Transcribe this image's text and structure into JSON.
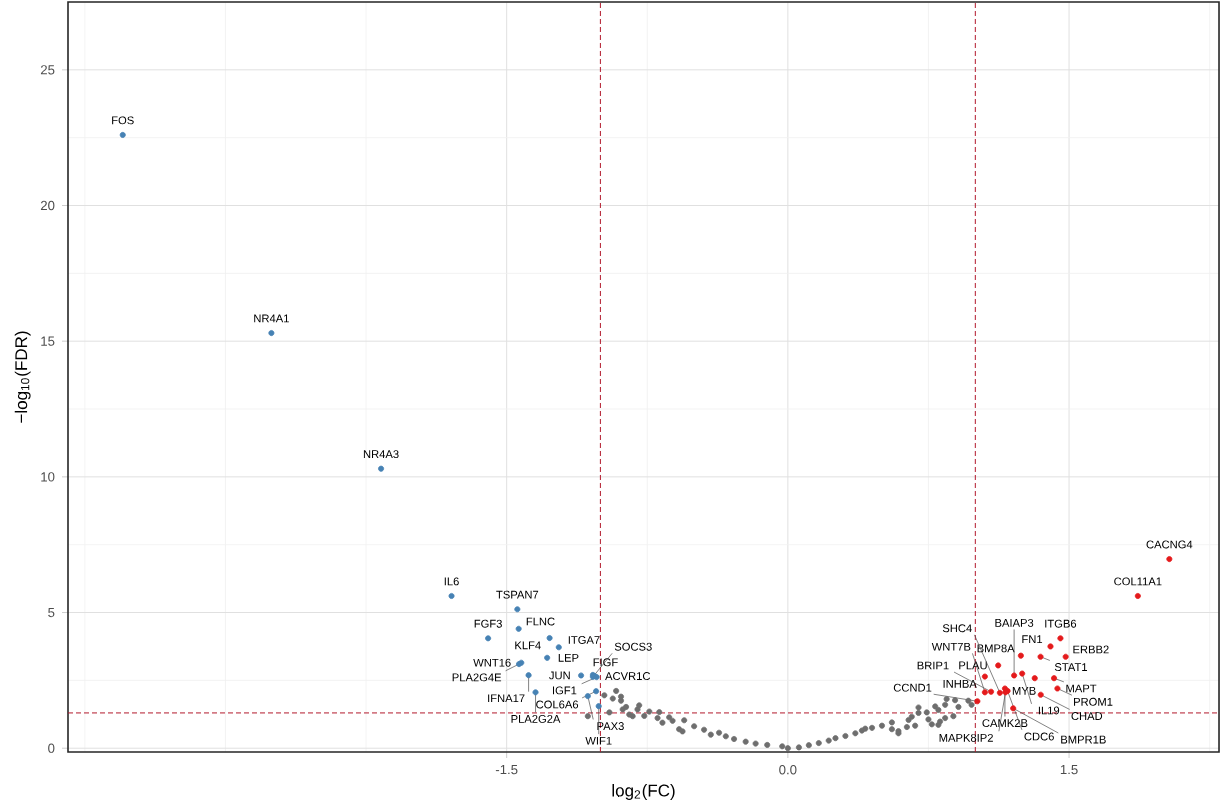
{
  "chart_data": {
    "type": "scatter",
    "xlabel": "log$_{2}$(FC)",
    "ylabel": "−log$_{10}$(FDR)",
    "xlim": [
      -3.84,
      2.3
    ],
    "ylim": [
      -0.14,
      27.5
    ],
    "xticks": [
      -1.5,
      {
        "value": 0,
        "label": "0.0"
      },
      1.5
    ],
    "yticks": [
      0,
      5,
      10,
      15,
      20,
      25
    ],
    "grid": true,
    "marker": "circle",
    "series": [
      {
        "color": "#4682b4",
        "x": [
          -3.548,
          -2.755,
          -2.17,
          -1.794,
          -1.443,
          -1.436,
          -1.599,
          -1.271,
          -1.222,
          -1.284,
          -1.422,
          -1.434,
          -1.04,
          -1.103,
          -1.03,
          -1.383,
          -1.04,
          -1.02,
          -1.023,
          -1.346,
          -1.067,
          -1.009
        ],
        "values": [
          22.6,
          15.3,
          10.3,
          5.61,
          5.12,
          4.4,
          4.05,
          4.06,
          3.72,
          3.33,
          3.15,
          3.1,
          2.7,
          2.68,
          2.66,
          2.69,
          2.63,
          2.62,
          2.1,
          2.06,
          1.92,
          1.55
        ]
      },
      {
        "color": "#e41a1c",
        "x": [
          2.035,
          1.867,
          1.454,
          1.401,
          1.482,
          1.348,
          1.243,
          1.122,
          1.25,
          1.207,
          1.051,
          1.317,
          1.42,
          1.438,
          1.172,
          1.158,
          1.131,
          1.084,
          1.051,
          1.161,
          1.349,
          1.011,
          1.202
        ],
        "values": [
          6.97,
          5.61,
          4.05,
          3.75,
          3.37,
          3.37,
          3.41,
          3.05,
          2.75,
          2.68,
          2.64,
          2.58,
          2.58,
          2.2,
          2.11,
          2.2,
          2.04,
          2.08,
          2.06,
          2.06,
          1.97,
          1.73,
          1.47
        ]
      },
      {
        "color": "#6e6e6e",
        "x": [
          -0.03,
          -0.11,
          -0.172,
          -0.225,
          -0.287,
          -0.331,
          -0.367,
          -0.411,
          -0.447,
          -0.5,
          -0.562,
          -0.58,
          -0.553,
          -0.615,
          -0.669,
          -0.633,
          -0.695,
          -0.686,
          -0.766,
          -0.828,
          -0.846,
          -0.739,
          -0.802,
          -0.793,
          -0.881,
          -0.863,
          -0.89,
          -0.89,
          -0.916,
          -0.934,
          -0.979,
          -0.952,
          -1.067,
          0.0,
          0.059,
          0.112,
          0.165,
          0.218,
          0.254,
          0.307,
          0.36,
          0.395,
          0.449,
          0.502,
          0.555,
          0.59,
          0.59,
          0.635,
          0.679,
          0.644,
          0.768,
          0.803,
          0.75,
          0.812,
          0.839,
          0.883,
          0.661,
          0.697,
          0.741,
          0.803,
          0.697,
          0.786,
          0.839,
          0.91,
          0.847,
          0.892,
          0.98,
          0.963,
          0.555,
          0.413
        ],
        "values": [
          0.07,
          0.12,
          0.17,
          0.24,
          0.34,
          0.44,
          0.57,
          0.5,
          0.68,
          0.81,
          0.62,
          0.7,
          1.03,
          1.01,
          0.94,
          1.14,
          1.11,
          1.33,
          1.19,
          1.18,
          1.24,
          1.35,
          1.43,
          1.58,
          1.43,
          1.52,
          1.75,
          1.9,
          2.11,
          1.83,
          1.95,
          1.32,
          1.18,
          0.0,
          0.03,
          0.11,
          0.19,
          0.28,
          0.37,
          0.45,
          0.55,
          0.65,
          0.75,
          0.83,
          0.95,
          0.55,
          0.63,
          0.78,
          0.83,
          1.04,
          0.88,
          0.86,
          1.06,
          0.98,
          1.11,
          1.18,
          1.16,
          1.3,
          1.32,
          1.41,
          1.5,
          1.54,
          1.6,
          1.52,
          1.81,
          1.77,
          1.6,
          1.75,
          0.7,
          0.72
        ]
      }
    ],
    "ref_lines": [
      {
        "axis": "x",
        "value": -1,
        "color": "#b2182b",
        "line_style": "dashed"
      },
      {
        "axis": "x",
        "value": 1,
        "color": "#b2182b",
        "line_style": "dashed"
      },
      {
        "axis": "y",
        "value": 1.3,
        "color": "#b2182b",
        "line_style": "dashed"
      }
    ],
    "annotations": [
      {
        "text": "FOS",
        "x": -3.548,
        "y": 22.6
      },
      {
        "text": "NR4A1",
        "x": -2.755,
        "y": 15.3
      },
      {
        "text": "NR4A3",
        "x": -2.17,
        "y": 10.3
      },
      {
        "text": "IL6",
        "x": -1.794,
        "y": 5.61
      },
      {
        "text": "TSPAN7",
        "x": -1.443,
        "y": 5.12
      },
      {
        "text": "FLNC",
        "x": -1.436,
        "y": 4.4
      },
      {
        "text": "FGF3",
        "x": -1.599,
        "y": 4.05
      },
      {
        "text": "KLF4",
        "x": -1.271,
        "y": 4.06
      },
      {
        "text": "ITGA7",
        "x": -1.222,
        "y": 3.72
      },
      {
        "text": "LEP",
        "x": -1.284,
        "y": 3.33
      },
      {
        "text": "WNT16",
        "x": -1.422,
        "y": 3.15
      },
      {
        "text": "PLA2G4E",
        "x": -1.434,
        "y": 3.1
      },
      {
        "text": "FIGF",
        "x": -1.04,
        "y": 2.7
      },
      {
        "text": "JUN",
        "x": -1.103,
        "y": 2.68
      },
      {
        "text": "ACVR1C",
        "x": -1.03,
        "y": 2.66
      },
      {
        "text": "IFNA17",
        "x": -1.383,
        "y": 2.69
      },
      {
        "text": "SOCS3",
        "x": -1.04,
        "y": 2.63
      },
      {
        "text": "IGF1",
        "x": -1.02,
        "y": 2.62
      },
      {
        "text": "COL6A6",
        "x": -1.023,
        "y": 2.1
      },
      {
        "text": "PLA2G2A",
        "x": -1.346,
        "y": 2.06
      },
      {
        "text": "PAX3",
        "x": -1.067,
        "y": 1.92
      },
      {
        "text": "WIF1",
        "x": -1.009,
        "y": 1.55
      },
      {
        "text": "CACNG4",
        "x": 2.035,
        "y": 6.97
      },
      {
        "text": "COL11A1",
        "x": 1.867,
        "y": 5.61
      },
      {
        "text": "ITGB6",
        "x": 1.454,
        "y": 4.05
      },
      {
        "text": "FN1",
        "x": 1.401,
        "y": 3.75
      },
      {
        "text": "ERBB2",
        "x": 1.482,
        "y": 3.37
      },
      {
        "text": "STAT1",
        "x": 1.348,
        "y": 3.37
      },
      {
        "text": "BMP8A",
        "x": 1.243,
        "y": 3.41
      },
      {
        "text": "PLAU",
        "x": 1.122,
        "y": 3.05
      },
      {
        "text": "IL19",
        "x": 1.25,
        "y": 2.75
      },
      {
        "text": "BAIAP3",
        "x": 1.207,
        "y": 2.68
      },
      {
        "text": "INHBA",
        "x": 1.051,
        "y": 2.64
      },
      {
        "text": "MYB",
        "x": 1.317,
        "y": 2.58
      },
      {
        "text": "MAPT",
        "x": 1.42,
        "y": 2.58
      },
      {
        "text": "PROM1",
        "x": 1.438,
        "y": 2.2
      },
      {
        "text": "CDC6",
        "x": 1.172,
        "y": 2.11
      },
      {
        "text": "CAMK2B",
        "x": 1.158,
        "y": 2.2
      },
      {
        "text": "SHC4",
        "x": 1.131,
        "y": 2.04
      },
      {
        "text": "BRIP1",
        "x": 1.084,
        "y": 2.08
      },
      {
        "text": "WNT7B",
        "x": 1.051,
        "y": 2.06
      },
      {
        "text": "MAPK8IP2",
        "x": 1.161,
        "y": 2.06
      },
      {
        "text": "CHAD",
        "x": 1.349,
        "y": 1.97
      },
      {
        "text": "CCND1",
        "x": 1.011,
        "y": 1.73
      },
      {
        "text": "BMPR1B",
        "x": 1.202,
        "y": 1.47
      }
    ]
  }
}
